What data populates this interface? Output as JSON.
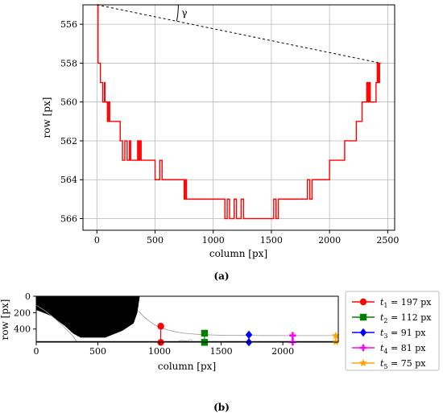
{
  "chart_data": [
    {
      "type": "line",
      "panel": "(a)",
      "xlabel": "column [px]",
      "ylabel": "row [px]",
      "xlim": [
        -120,
        2560
      ],
      "ylim": [
        555,
        566.6
      ],
      "y_inverted": true,
      "grid": true,
      "xticks": [
        0,
        500,
        1000,
        1500,
        2000,
        2500
      ],
      "yticks": [
        556,
        558,
        560,
        562,
        564,
        566
      ],
      "series": [
        {
          "color": "#ff0000",
          "step": true,
          "x": [
            0,
            10,
            20,
            30,
            40,
            50,
            60,
            65,
            70,
            75,
            80,
            90,
            100,
            110,
            120,
            200,
            210,
            220,
            230,
            240,
            250,
            260,
            270,
            280,
            290,
            300,
            310,
            340,
            350,
            360,
            370,
            380,
            390,
            400,
            500,
            520,
            540,
            560,
            580,
            600,
            620,
            640,
            740,
            750,
            760,
            770,
            780,
            1000,
            1100,
            1120,
            1140,
            1160,
            1180,
            1200,
            1220,
            1240,
            1260,
            1300,
            1350,
            1400,
            1500,
            1520,
            1540,
            1560,
            1800,
            1810,
            1830,
            1850,
            1870,
            1990,
            2000,
            2010,
            2130,
            2140,
            2230,
            2260,
            2280,
            2300,
            2320,
            2330,
            2340,
            2350,
            2400,
            2410,
            2420,
            2430,
            2440
          ],
          "y": [
            555,
            558,
            558,
            559,
            559,
            560,
            560,
            559,
            560,
            560,
            560,
            561,
            560,
            561,
            561,
            562,
            562,
            563,
            563,
            562,
            562,
            563,
            563,
            562,
            563,
            563,
            563,
            563,
            562,
            563,
            562,
            563,
            563,
            563,
            564,
            564,
            563,
            564,
            564,
            564,
            564,
            564,
            564,
            565,
            564,
            565,
            565,
            565,
            566,
            565,
            566,
            566,
            565,
            566,
            566,
            565,
            566,
            566,
            566,
            566,
            566,
            565,
            566,
            565,
            565,
            564,
            565,
            564,
            564,
            564,
            563,
            563,
            562,
            562,
            561,
            561,
            560,
            560,
            559,
            560,
            559,
            560,
            559,
            558,
            559,
            558,
            558
          ]
        }
      ],
      "dashed_lines": [
        {
          "from": [
            0,
            555
          ],
          "to": [
            2440,
            555
          ]
        },
        {
          "from": [
            0,
            555
          ],
          "to": [
            2440,
            558
          ]
        }
      ],
      "annotation": "γ"
    },
    {
      "type": "scatter",
      "panel": "(b)",
      "xlabel": "column [px]",
      "ylabel": "row [px]",
      "xlim": [
        0,
        2450
      ],
      "ylim": [
        0,
        560
      ],
      "y_inverted": true,
      "xticks": [
        0,
        500,
        1000,
        1500,
        2000
      ],
      "yticks": [
        0,
        200,
        400
      ],
      "series": [
        {
          "name": "t_1 = 197 px",
          "color": "#ff0000",
          "marker": "circle",
          "x": [
            1010,
            1010
          ],
          "y": [
            366,
            563
          ]
        },
        {
          "name": "t_2 = 112 px",
          "color": "#008000",
          "marker": "square",
          "x": [
            1365,
            1365
          ],
          "y": [
            451,
            563
          ]
        },
        {
          "name": "t_3 = 91 px",
          "color": "#0000ff",
          "marker": "diamond",
          "x": [
            1725,
            1725
          ],
          "y": [
            470,
            561
          ]
        },
        {
          "name": "t_4 = 81 px",
          "color": "#ff00ff",
          "marker": "plus",
          "x": [
            2080,
            2080
          ],
          "y": [
            478,
            559
          ]
        },
        {
          "name": "t_5 = 75 px",
          "color": "#ffa500",
          "marker": "star",
          "x": [
            2430,
            2430
          ],
          "y": [
            482,
            557
          ]
        }
      ]
    }
  ],
  "captions": {
    "a": "(a)",
    "b": "(b)"
  },
  "legend": [
    {
      "t": "t",
      "sub": "1",
      "rest": " = 197 px"
    },
    {
      "t": "t",
      "sub": "2",
      "rest": " = 112 px"
    },
    {
      "t": "t",
      "sub": "3",
      "rest": " = 91 px"
    },
    {
      "t": "t",
      "sub": "4",
      "rest": " = 81 px"
    },
    {
      "t": "t",
      "sub": "5",
      "rest": " = 75 px"
    }
  ]
}
